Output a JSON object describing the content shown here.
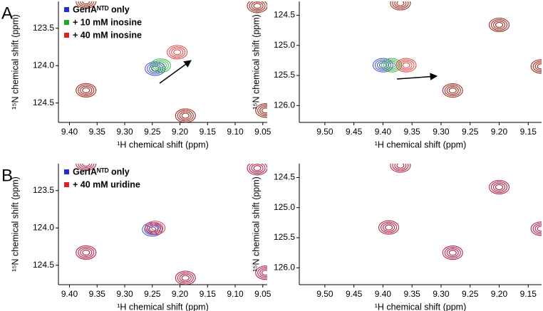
{
  "chart_data": [
    {
      "type": "contour",
      "label": "A",
      "xlabel": "¹H chemical shift (ppm)",
      "ylabel": "¹⁵N chemical shift (ppm)",
      "legend": true,
      "xlim": [
        9.42,
        9.042
      ],
      "ylim": [
        124.76,
        123.14
      ],
      "xticks": [
        {
          "value": 9.4,
          "label": "9.40"
        },
        9.35,
        {
          "value": 9.3,
          "label": "9.30"
        },
        9.25,
        {
          "value": 9.2,
          "label": "9.20"
        },
        9.15,
        {
          "value": 9.1,
          "label": "9.10"
        },
        9.05
      ],
      "yticks": [
        123.5,
        {
          "value": 124,
          "label": "124.0"
        },
        124.5
      ],
      "series": [
        {
          "name": "GerIAᴺᵀᴰ only",
          "color": "#1f2fd0",
          "x": [
            9.37,
            9.245,
            9.19,
            9.06,
            9.045,
            9.37
          ],
          "values": [
            124.33,
            124.04,
            124.67,
            123.2,
            124.6,
            123.14
          ]
        },
        {
          "name": "+ 10 mM inosine",
          "color": "#1fa82a",
          "x": [
            9.37,
            9.235,
            9.19,
            9.06,
            9.045,
            9.37
          ],
          "values": [
            124.33,
            124.0,
            124.67,
            123.2,
            124.6,
            123.14
          ]
        },
        {
          "name": "+ 40 mM inosine",
          "color": "#e02020",
          "x": [
            9.37,
            9.205,
            9.19,
            9.06,
            9.045,
            9.37
          ],
          "values": [
            124.33,
            123.82,
            124.67,
            123.2,
            124.6,
            123.14
          ]
        }
      ]
    },
    {
      "type": "contour",
      "xlabel": "¹H chemical shift (ppm)",
      "ylabel": "¹⁵N chemical shift (ppm)",
      "legend": false,
      "xlim": [
        9.544,
        9.127
      ],
      "ylim": [
        126.28,
        124.27
      ],
      "xticks": [
        {
          "value": 9.5,
          "label": "9.50"
        },
        9.45,
        {
          "value": 9.4,
          "label": "9.40"
        },
        9.35,
        {
          "value": 9.3,
          "label": "9.30"
        },
        9.25,
        {
          "value": 9.2,
          "label": "9.20"
        },
        9.15
      ],
      "yticks": [
        124.5,
        {
          "value": 125,
          "label": "125.0"
        },
        125.5,
        {
          "value": 126,
          "label": "126.0"
        }
      ],
      "series": [
        {
          "color": "#1f2fd0",
          "x": [
            9.37,
            9.4,
            9.28,
            9.2,
            9.128
          ],
          "values": [
            124.3,
            125.33,
            125.75,
            124.66,
            125.35
          ]
        },
        {
          "color": "#1fa82a",
          "x": [
            9.37,
            9.385,
            9.28,
            9.2,
            9.128
          ],
          "values": [
            124.3,
            125.33,
            125.75,
            124.66,
            125.35
          ]
        },
        {
          "color": "#e02020",
          "x": [
            9.37,
            9.36,
            9.28,
            9.2,
            9.128
          ],
          "values": [
            124.3,
            125.33,
            125.75,
            124.66,
            125.35
          ]
        }
      ]
    },
    {
      "type": "contour",
      "label": "B",
      "xlabel": "¹H chemical shift (ppm)",
      "ylabel": "¹⁵N chemical shift (ppm)",
      "legend": true,
      "xlim": [
        9.42,
        9.042
      ],
      "ylim": [
        124.76,
        123.14
      ],
      "xticks": [
        {
          "value": 9.4,
          "label": "9.40"
        },
        9.35,
        {
          "value": 9.3,
          "label": "9.30"
        },
        9.25,
        {
          "value": 9.2,
          "label": "9.20"
        },
        9.15,
        {
          "value": 9.1,
          "label": "9.10"
        },
        9.05
      ],
      "yticks": [
        123.5,
        {
          "value": 124,
          "label": "124.0"
        },
        124.5
      ],
      "series": [
        {
          "name": "GerIAᴺᵀᴰ only",
          "color": "#1f2fd0",
          "x": [
            9.37,
            9.25,
            9.19,
            9.06,
            9.045,
            9.37
          ],
          "values": [
            124.33,
            124.02,
            124.67,
            123.2,
            124.6,
            123.14
          ]
        },
        {
          "name": "+ 40 mM uridine",
          "color": "#e02020",
          "x": [
            9.37,
            9.245,
            9.19,
            9.06,
            9.045,
            9.37
          ],
          "values": [
            124.33,
            124.0,
            124.67,
            123.2,
            124.6,
            123.14
          ]
        }
      ]
    },
    {
      "type": "contour",
      "xlabel": "¹H chemical shift (ppm)",
      "ylabel": "¹⁵N chemical shift (ppm)",
      "legend": false,
      "xlim": [
        9.544,
        9.127
      ],
      "ylim": [
        126.28,
        124.27
      ],
      "xticks": [
        {
          "value": 9.5,
          "label": "9.50"
        },
        9.45,
        {
          "value": 9.4,
          "label": "9.40"
        },
        9.35,
        {
          "value": 9.3,
          "label": "9.30"
        },
        9.25,
        {
          "value": 9.2,
          "label": "9.20"
        },
        9.15
      ],
      "yticks": [
        124.5,
        {
          "value": 125,
          "label": "125.0"
        },
        125.5,
        {
          "value": 126,
          "label": "126.0"
        }
      ],
      "series": [
        {
          "color": "#1f2fd0",
          "x": [
            9.37,
            9.39,
            9.28,
            9.2,
            9.128
          ],
          "values": [
            124.3,
            125.33,
            125.75,
            124.66,
            125.35
          ]
        },
        {
          "color": "#e02020",
          "x": [
            9.37,
            9.39,
            9.28,
            9.2,
            9.128
          ],
          "values": [
            124.3,
            125.33,
            125.75,
            124.66,
            125.35
          ]
        }
      ]
    }
  ]
}
